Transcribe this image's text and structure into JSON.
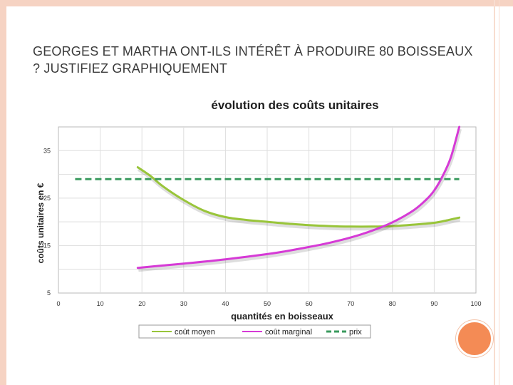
{
  "slide": {
    "title": "GEORGES ET MARTHA ONT-ILS INTÉRÊT À PRODUIRE 80 BOISSEAUX ? JUSTIFIEZ GRAPHIQUEMENT"
  },
  "chart_data": {
    "type": "line",
    "title": "évolution des coûts unitaires",
    "xlabel": "quantités en boisseaux",
    "ylabel": "coûts unitaires en €",
    "xlim": [
      0,
      100
    ],
    "ylim": [
      5,
      40
    ],
    "x_ticks": [
      "0",
      "10",
      "20",
      "30",
      "40",
      "50",
      "60",
      "70",
      "80",
      "90",
      "100"
    ],
    "y_ticks": [
      "5",
      "15",
      "25",
      "35"
    ],
    "grid": true,
    "legend_position": "bottom",
    "series": [
      {
        "name": "coût moyen",
        "color": "#99c53a",
        "style": "solid",
        "points": [
          [
            19,
            31.5
          ],
          [
            22,
            29.7
          ],
          [
            25,
            27.5
          ],
          [
            30,
            24.6
          ],
          [
            35,
            22.3
          ],
          [
            40,
            21.0
          ],
          [
            45,
            20.4
          ],
          [
            50,
            20.0
          ],
          [
            55,
            19.6
          ],
          [
            60,
            19.3
          ],
          [
            65,
            19.1
          ],
          [
            70,
            19.0
          ],
          [
            75,
            19.0
          ],
          [
            80,
            19.1
          ],
          [
            85,
            19.4
          ],
          [
            90,
            19.8
          ],
          [
            93,
            20.3
          ],
          [
            96,
            20.9
          ]
        ]
      },
      {
        "name": "coût marginal",
        "color": "#d63ad6",
        "style": "solid",
        "points": [
          [
            19,
            10.3
          ],
          [
            25,
            10.8
          ],
          [
            30,
            11.2
          ],
          [
            40,
            12.1
          ],
          [
            50,
            13.2
          ],
          [
            55,
            13.9
          ],
          [
            60,
            14.7
          ],
          [
            65,
            15.6
          ],
          [
            70,
            16.7
          ],
          [
            75,
            18.1
          ],
          [
            80,
            19.9
          ],
          [
            85,
            22.4
          ],
          [
            88,
            24.6
          ],
          [
            90,
            26.6
          ],
          [
            92,
            29.6
          ],
          [
            94,
            33.6
          ],
          [
            96,
            40.0
          ]
        ]
      },
      {
        "name": "prix",
        "color": "#3a9a5e",
        "style": "dashed",
        "points": [
          [
            4,
            29
          ],
          [
            96,
            29
          ]
        ]
      }
    ]
  }
}
